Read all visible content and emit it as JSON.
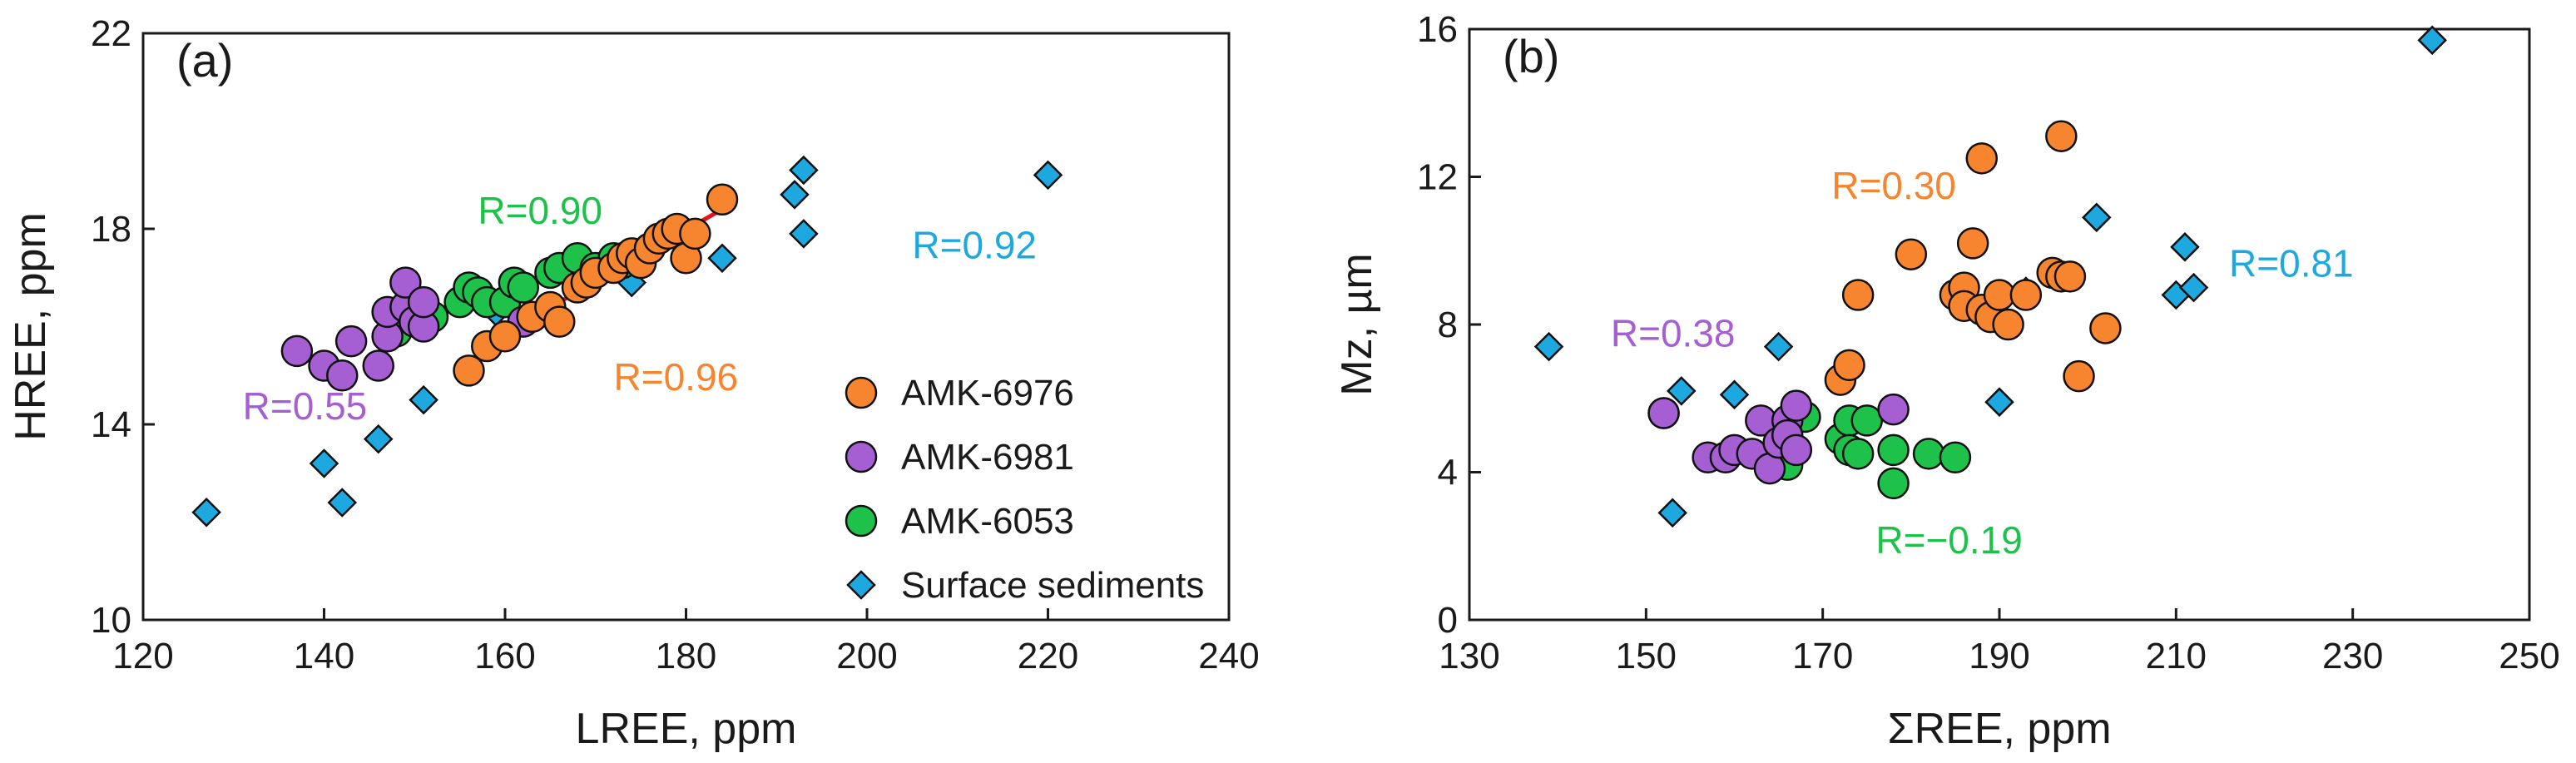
{
  "colors": {
    "AMK-6976": "#f7852f",
    "AMK-6981": "#a65fd3",
    "AMK-6053": "#1ec24a",
    "Surface sediments": "#1ea8e0",
    "trend": "#e8101a"
  },
  "legend": [
    {
      "name": "AMK-6976",
      "marker": "circle"
    },
    {
      "name": "AMK-6981",
      "marker": "circle"
    },
    {
      "name": "AMK-6053",
      "marker": "circle"
    },
    {
      "name": "Surface sediments",
      "marker": "diamond"
    }
  ],
  "chart_data": [
    {
      "type": "scatter",
      "panel_label": "(a)",
      "xlabel": "LREE, ppm",
      "ylabel": "HREE, ppm",
      "xlim": [
        120,
        240
      ],
      "ylim": [
        10,
        22
      ],
      "xticks": [
        "120",
        "140",
        "160",
        "180",
        "200",
        "220",
        "240"
      ],
      "yticks": [
        "10",
        "14",
        "18",
        "22"
      ],
      "legend_position": "bottom-right",
      "series": [
        {
          "name": "AMK-6976",
          "points": [
            [
              156,
              15.1
            ],
            [
              158,
              15.6
            ],
            [
              160,
              15.8
            ],
            [
              163,
              16.2
            ],
            [
              165,
              16.4
            ],
            [
              166,
              16.1
            ],
            [
              168,
              16.8
            ],
            [
              169,
              16.9
            ],
            [
              170,
              17.1
            ],
            [
              172,
              17.2
            ],
            [
              173,
              17.4
            ],
            [
              174,
              17.5
            ],
            [
              175,
              17.3
            ],
            [
              176,
              17.6
            ],
            [
              177,
              17.8
            ],
            [
              178,
              17.9
            ],
            [
              179,
              18.0
            ],
            [
              180,
              17.4
            ],
            [
              181,
              17.9
            ],
            [
              184,
              18.6
            ]
          ]
        },
        {
          "name": "AMK-6981",
          "points": [
            [
              137,
              15.5
            ],
            [
              140,
              15.2
            ],
            [
              142,
              15.0
            ],
            [
              143,
              15.7
            ],
            [
              146,
              15.2
            ],
            [
              147,
              15.8
            ],
            [
              147,
              16.3
            ],
            [
              149,
              16.4
            ],
            [
              149,
              16.9
            ],
            [
              150,
              16.1
            ],
            [
              151,
              16.0
            ],
            [
              151,
              16.5
            ],
            [
              162,
              16.1
            ]
          ]
        },
        {
          "name": "AMK-6053",
          "points": [
            [
              148,
              15.9
            ],
            [
              152,
              16.2
            ],
            [
              155,
              16.5
            ],
            [
              156,
              16.8
            ],
            [
              157,
              16.7
            ],
            [
              158,
              16.5
            ],
            [
              160,
              16.5
            ],
            [
              161,
              16.9
            ],
            [
              162,
              16.8
            ],
            [
              165,
              17.1
            ],
            [
              166,
              17.2
            ],
            [
              168,
              17.4
            ],
            [
              170,
              17.2
            ],
            [
              172,
              17.4
            ],
            [
              173,
              17.3
            ]
          ]
        },
        {
          "name": "Surface sediments",
          "points": [
            [
              127,
              12.2
            ],
            [
              140,
              13.2
            ],
            [
              142,
              12.4
            ],
            [
              146,
              13.7
            ],
            [
              151,
              14.5
            ],
            [
              159,
              16.3
            ],
            [
              161,
              16.8
            ],
            [
              174,
              16.9
            ],
            [
              175,
              17.5
            ],
            [
              184,
              17.4
            ],
            [
              192,
              18.7
            ],
            [
              193,
              19.2
            ],
            [
              193,
              17.9
            ],
            [
              220,
              19.1
            ]
          ]
        }
      ],
      "trendlines": [
        {
          "from": [
            148,
            15.95
          ],
          "to": [
            168,
            17.3
          ]
        },
        {
          "from": [
            157,
            15.55
          ],
          "to": [
            184,
            18.4
          ]
        }
      ],
      "annotations": [
        {
          "text": "R=0.90",
          "series": "AMK-6053",
          "at": [
            157,
            18.1
          ]
        },
        {
          "text": "R=0.92",
          "series": "Surface sediments",
          "at": [
            205,
            17.4
          ]
        },
        {
          "text": "R=0.55",
          "series": "AMK-6981",
          "at": [
            131,
            14.1
          ]
        },
        {
          "text": "R=0.96",
          "series": "AMK-6976",
          "at": [
            172,
            14.7
          ]
        }
      ]
    },
    {
      "type": "scatter",
      "panel_label": "(b)",
      "xlabel": "ΣREE, ppm",
      "ylabel": "Mz, µm",
      "xlim": [
        130,
        250
      ],
      "ylim": [
        0,
        16
      ],
      "xticks": [
        "130",
        "150",
        "170",
        "190",
        "210",
        "230",
        "250"
      ],
      "yticks": [
        "0",
        "4",
        "8",
        "12",
        "16"
      ],
      "series": [
        {
          "name": "AMK-6976",
          "points": [
            [
              172,
              6.5
            ],
            [
              173,
              6.9
            ],
            [
              174,
              8.8
            ],
            [
              180,
              9.9
            ],
            [
              185,
              8.8
            ],
            [
              186,
              9.0
            ],
            [
              186,
              8.5
            ],
            [
              187,
              10.2
            ],
            [
              188,
              8.4
            ],
            [
              188,
              12.5
            ],
            [
              189,
              8.2
            ],
            [
              190,
              8.8
            ],
            [
              191,
              8.0
            ],
            [
              193,
              8.8
            ],
            [
              196,
              9.4
            ],
            [
              197,
              9.3
            ],
            [
              197,
              13.1
            ],
            [
              198,
              9.3
            ],
            [
              199,
              6.6
            ],
            [
              202,
              7.9
            ]
          ]
        },
        {
          "name": "AMK-6981",
          "points": [
            [
              152,
              5.6
            ],
            [
              157,
              4.4
            ],
            [
              159,
              4.4
            ],
            [
              160,
              4.6
            ],
            [
              162,
              4.5
            ],
            [
              163,
              5.4
            ],
            [
              164,
              4.1
            ],
            [
              165,
              4.8
            ],
            [
              166,
              5.4
            ],
            [
              166,
              5.0
            ],
            [
              167,
              4.6
            ],
            [
              167,
              5.8
            ],
            [
              178,
              5.7
            ]
          ]
        },
        {
          "name": "AMK-6053",
          "points": [
            [
              152,
              5.6
            ],
            [
              165,
              4.7
            ],
            [
              166,
              4.2
            ],
            [
              168,
              5.5
            ],
            [
              172,
              4.9
            ],
            [
              173,
              5.4
            ],
            [
              173,
              4.6
            ],
            [
              174,
              4.5
            ],
            [
              175,
              5.4
            ],
            [
              178,
              4.6
            ],
            [
              178,
              3.7
            ],
            [
              182,
              4.5
            ],
            [
              185,
              4.4
            ]
          ]
        },
        {
          "name": "Surface sediments",
          "points": [
            [
              139,
              7.4
            ],
            [
              153,
              2.9
            ],
            [
              154,
              6.2
            ],
            [
              160,
              6.1
            ],
            [
              165,
              7.4
            ],
            [
              175,
              5.4
            ],
            [
              190,
              5.9
            ],
            [
              193,
              8.9
            ],
            [
              201,
              10.9
            ],
            [
              210,
              8.8
            ],
            [
              211,
              10.1
            ],
            [
              212,
              9.0
            ],
            [
              239,
              15.7
            ]
          ]
        }
      ],
      "annotations": [
        {
          "text": "R=0.30",
          "series": "AMK-6976",
          "at": [
            171,
            11.4
          ]
        },
        {
          "text": "R=0.38",
          "series": "AMK-6981",
          "at": [
            146,
            7.4
          ]
        },
        {
          "text": "R=0.81",
          "series": "Surface sediments",
          "at": [
            216,
            9.3
          ]
        },
        {
          "text": "R=−0.19",
          "series": "AMK-6053",
          "at": [
            176,
            1.8
          ]
        }
      ]
    }
  ]
}
